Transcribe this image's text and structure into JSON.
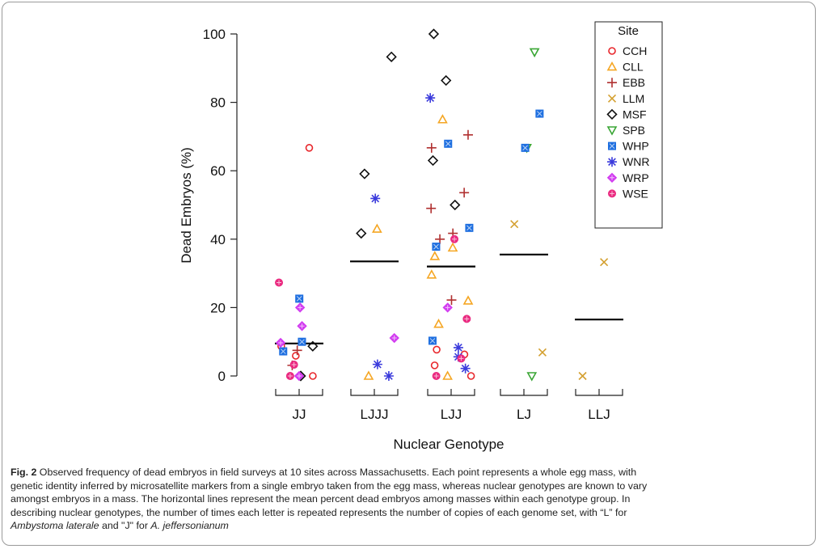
{
  "chart_data": {
    "type": "scatter",
    "xlabel": "Nuclear Genotype",
    "ylabel": "Dead Embryos (%)",
    "ylim": [
      0,
      100
    ],
    "yticks": [
      0,
      20,
      40,
      60,
      80,
      100
    ],
    "categories": [
      "JJ",
      "LJJJ",
      "LJJ",
      "LJ",
      "LLJ"
    ],
    "means": [
      9.5,
      33.5,
      32,
      35.5,
      16.5
    ],
    "legend_title": "Site",
    "legend_position": "top-right",
    "series": [
      {
        "name": "CCH",
        "marker": "circle",
        "color": "#e8262b",
        "points": [
          [
            0,
            66.7
          ],
          [
            0,
            8.7
          ],
          [
            0,
            5.9
          ],
          [
            0,
            0
          ],
          [
            2,
            7.7
          ],
          [
            2,
            6.3
          ],
          [
            2,
            3.1
          ],
          [
            2,
            0
          ]
        ]
      },
      {
        "name": "CLL",
        "marker": "triangle",
        "color": "#f5a623",
        "points": [
          [
            1,
            43
          ],
          [
            1,
            0
          ],
          [
            2,
            75
          ],
          [
            2,
            37.5
          ],
          [
            2,
            35
          ],
          [
            2,
            29.6
          ],
          [
            2,
            22
          ],
          [
            2,
            15.2
          ],
          [
            2,
            0
          ]
        ]
      },
      {
        "name": "EBB",
        "marker": "plus",
        "color": "#b03030",
        "points": [
          [
            0,
            7.5
          ],
          [
            0,
            3.1
          ],
          [
            2,
            70.5
          ],
          [
            2,
            66.7
          ],
          [
            2,
            53.6
          ],
          [
            2,
            49
          ],
          [
            2,
            41.7
          ],
          [
            2,
            40
          ],
          [
            2,
            22.2
          ]
        ]
      },
      {
        "name": "LLM",
        "marker": "x",
        "color": "#d4a030",
        "points": [
          [
            3,
            44.4
          ],
          [
            3,
            6.9
          ],
          [
            4,
            33.3
          ],
          [
            4,
            0
          ]
        ]
      },
      {
        "name": "MSF",
        "marker": "diamond",
        "color": "#111111",
        "points": [
          [
            0,
            8.7
          ],
          [
            0,
            0
          ],
          [
            1,
            93.3
          ],
          [
            1,
            59.1
          ],
          [
            1,
            41.7
          ],
          [
            2,
            100
          ],
          [
            2,
            86.4
          ],
          [
            2,
            63
          ],
          [
            2,
            50
          ]
        ]
      },
      {
        "name": "SPB",
        "marker": "triangle-down",
        "color": "#3aa635",
        "points": [
          [
            3,
            94.7
          ],
          [
            3,
            66.7
          ],
          [
            3,
            0
          ]
        ]
      },
      {
        "name": "WHP",
        "marker": "square-x",
        "color": "#1e6fe0",
        "points": [
          [
            0,
            22.6
          ],
          [
            0,
            10
          ],
          [
            0,
            7.2
          ],
          [
            2,
            67.9
          ],
          [
            2,
            43.3
          ],
          [
            2,
            37.8
          ],
          [
            2,
            10.3
          ],
          [
            3,
            76.7
          ],
          [
            3,
            66.7
          ]
        ]
      },
      {
        "name": "WNR",
        "marker": "asterisk",
        "color": "#3b3bdc",
        "points": [
          [
            1,
            51.9
          ],
          [
            1,
            3.4
          ],
          [
            1,
            0
          ],
          [
            2,
            81.3
          ],
          [
            2,
            8.3
          ],
          [
            2,
            5.6
          ],
          [
            2,
            2.2
          ]
        ]
      },
      {
        "name": "WRP",
        "marker": "diamond-plus",
        "color": "#d23cf0",
        "points": [
          [
            0,
            20
          ],
          [
            0,
            14.6
          ],
          [
            0,
            9.7
          ],
          [
            0,
            0
          ],
          [
            1,
            11.1
          ],
          [
            2,
            20
          ]
        ]
      },
      {
        "name": "WSE",
        "marker": "circle-plus",
        "color": "#ea2a80",
        "points": [
          [
            0,
            27.3
          ],
          [
            0,
            3.3
          ],
          [
            0,
            0
          ],
          [
            2,
            40
          ],
          [
            2,
            16.7
          ],
          [
            2,
            5.1
          ],
          [
            2,
            0
          ]
        ]
      }
    ]
  },
  "caption": {
    "fig_label": "Fig. 2",
    "line1": " Observed frequency of dead embryos in field surveys at 10 sites across Massachusetts. Each point represents a whole egg mass, with",
    "line2": "genetic identity inferred by microsatellite markers from a single embryo taken from the egg mass, whereas nuclear genotypes are known to vary",
    "line3": "amongst embryos in a mass. The horizontal lines represent the mean percent dead embryos among masses within each genotype group. In",
    "line4": "describing nuclear genotypes, the number of times each letter is repeated represents the number of copies of each genome set, with “L” for",
    "species1": "Ambystoma laterale",
    "and_text": " and \"J\" for ",
    "species2": "A. jeffersonianum"
  }
}
